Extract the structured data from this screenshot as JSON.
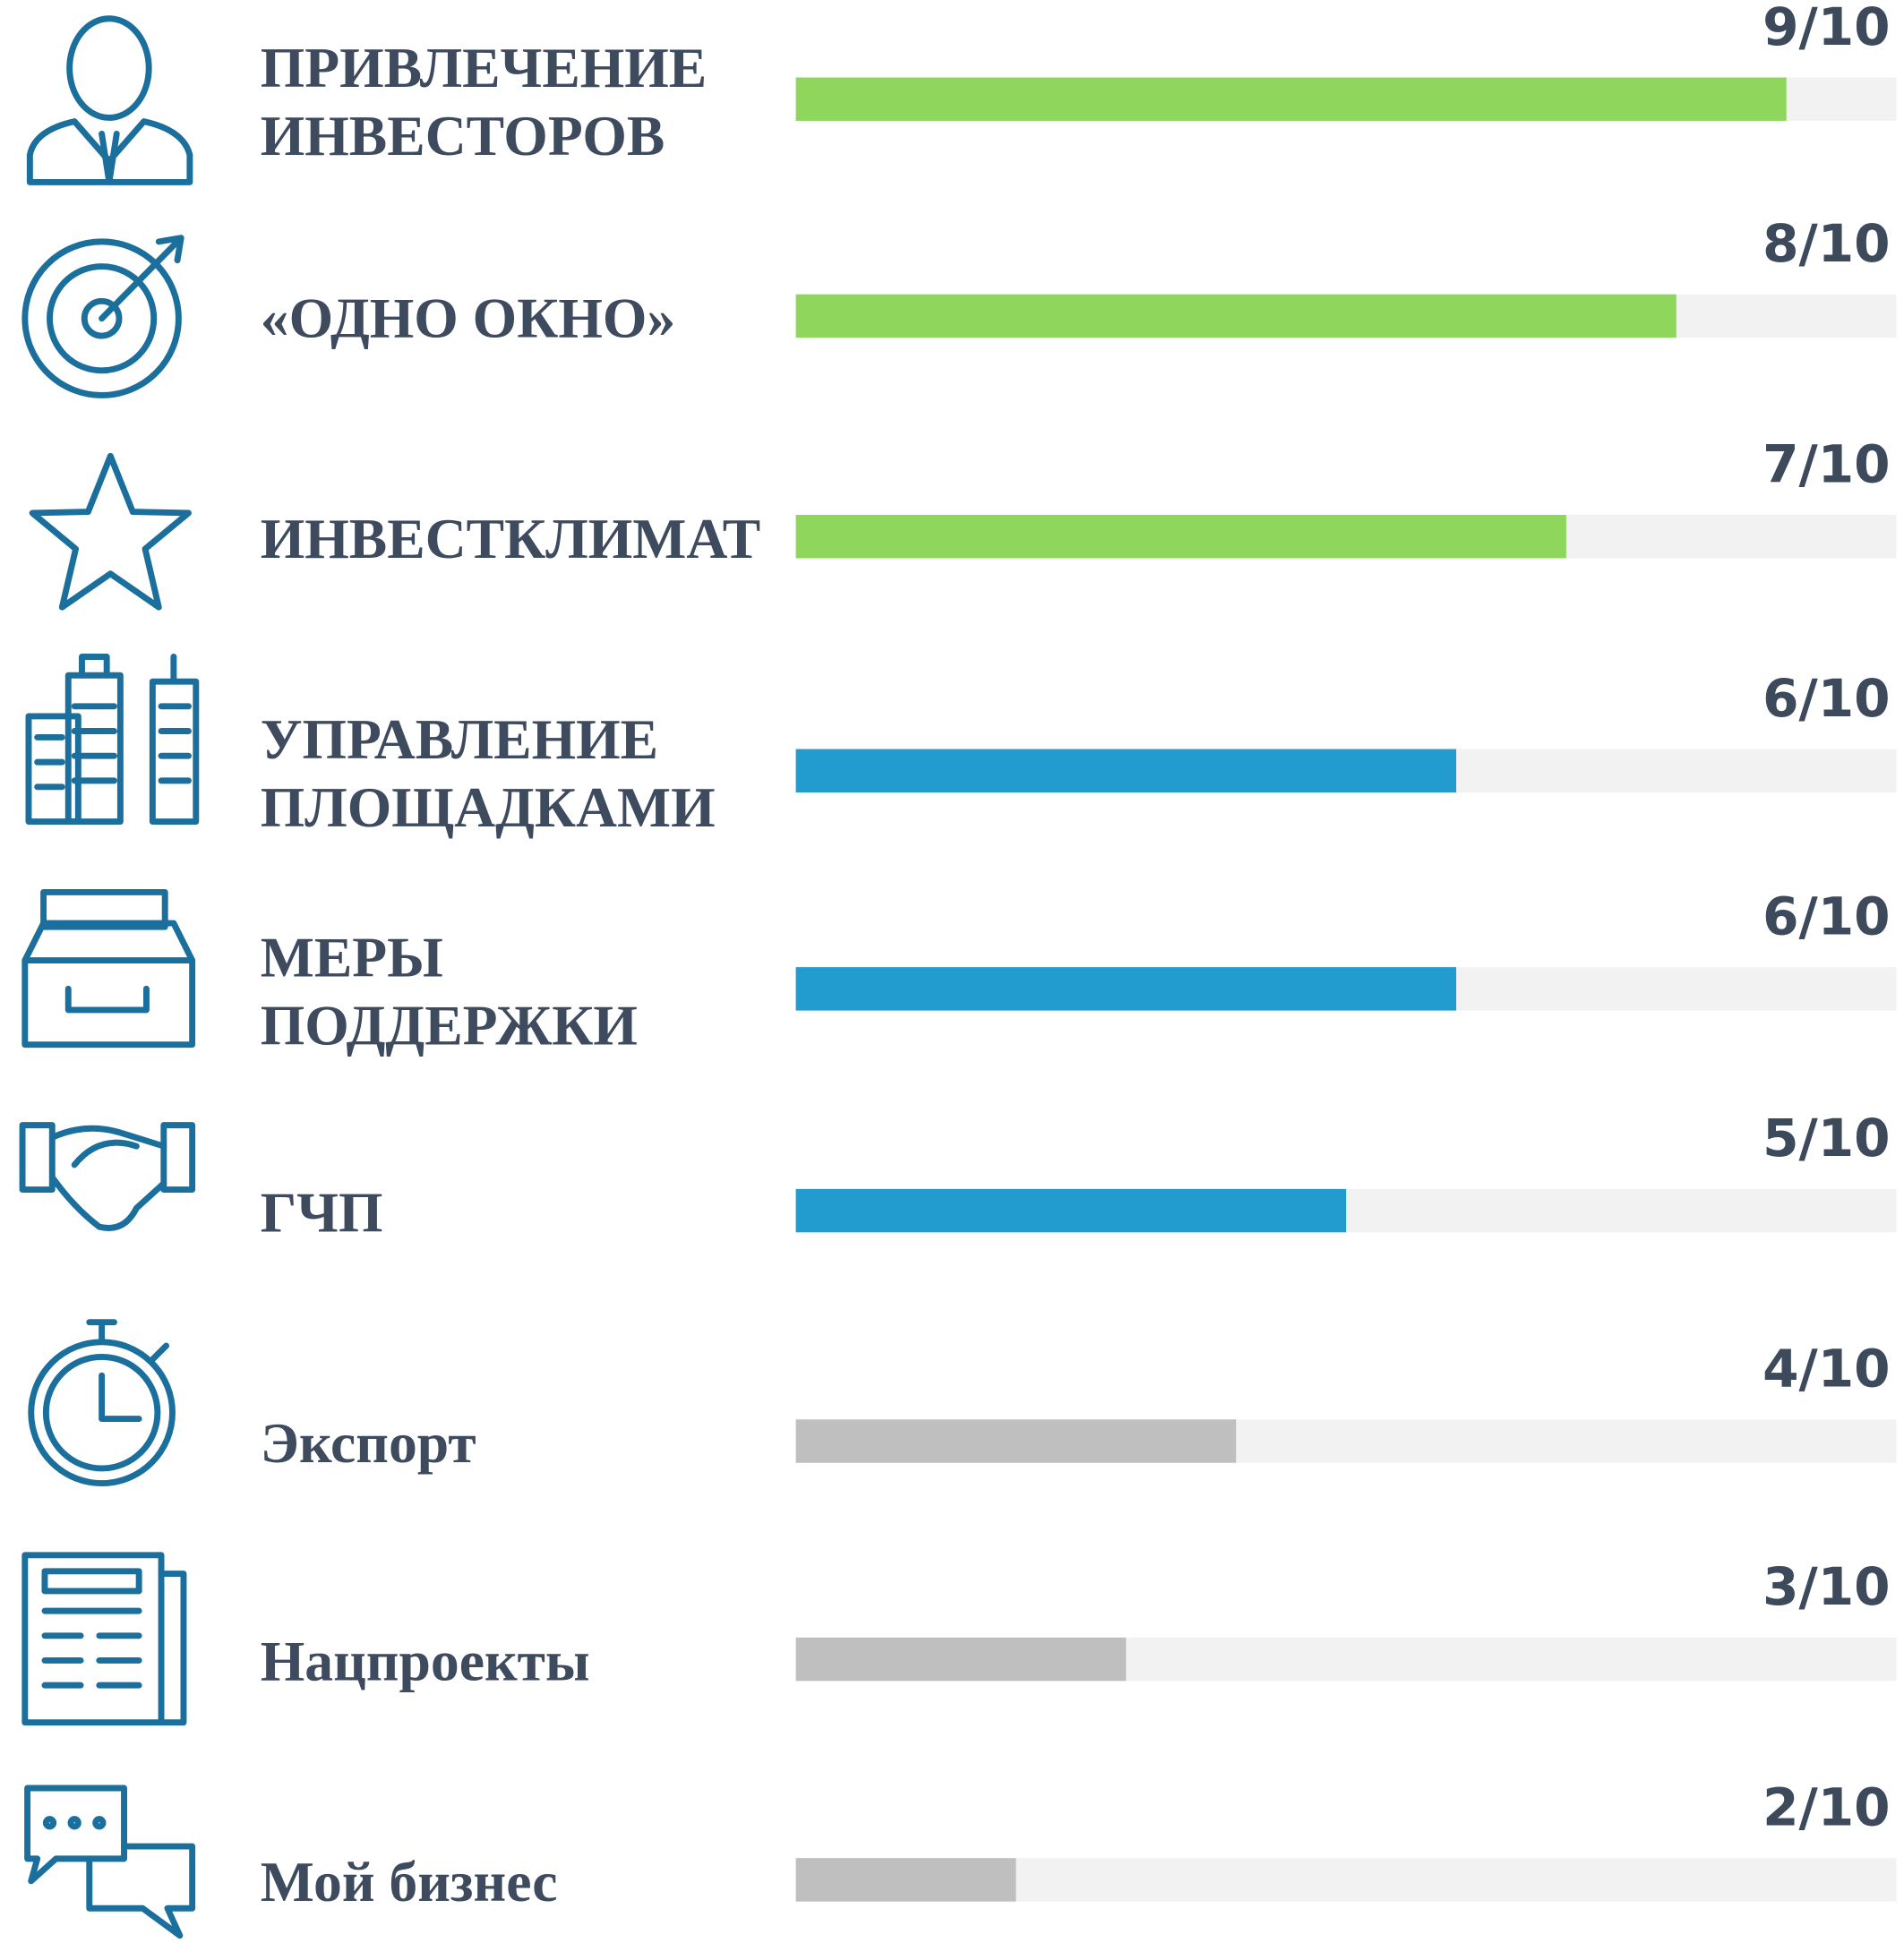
{
  "chart_data": {
    "type": "hbar",
    "categories": [
      "ПРИВЛЕЧЕНИЕ\nИНВЕСТОРОВ",
      "«ОДНО ОКНО»",
      "ИНВЕСТКЛИМАТ",
      "УПРАВЛЕНИЕ\nПЛОЩАДКАМИ",
      "МЕРЫ\nПОДДЕРЖКИ",
      "ГЧП",
      "Экспорт",
      "Нацпроекты",
      "Мой бизнес"
    ],
    "values": [
      9,
      8,
      7,
      6,
      6,
      5,
      4,
      3,
      2
    ],
    "value_labels": [
      "9/10",
      "8/10",
      "7/10",
      "6/10",
      "6/10",
      "5/10",
      "4/10",
      "3/10",
      "2/10"
    ],
    "colors": [
      "#8fd65d",
      "#8fd65d",
      "#8fd65d",
      "#229bcf",
      "#229bcf",
      "#229bcf",
      "#bfbfbf",
      "#bfbfbf",
      "#bfbfbf"
    ],
    "xlim": [
      0,
      10
    ]
  }
}
